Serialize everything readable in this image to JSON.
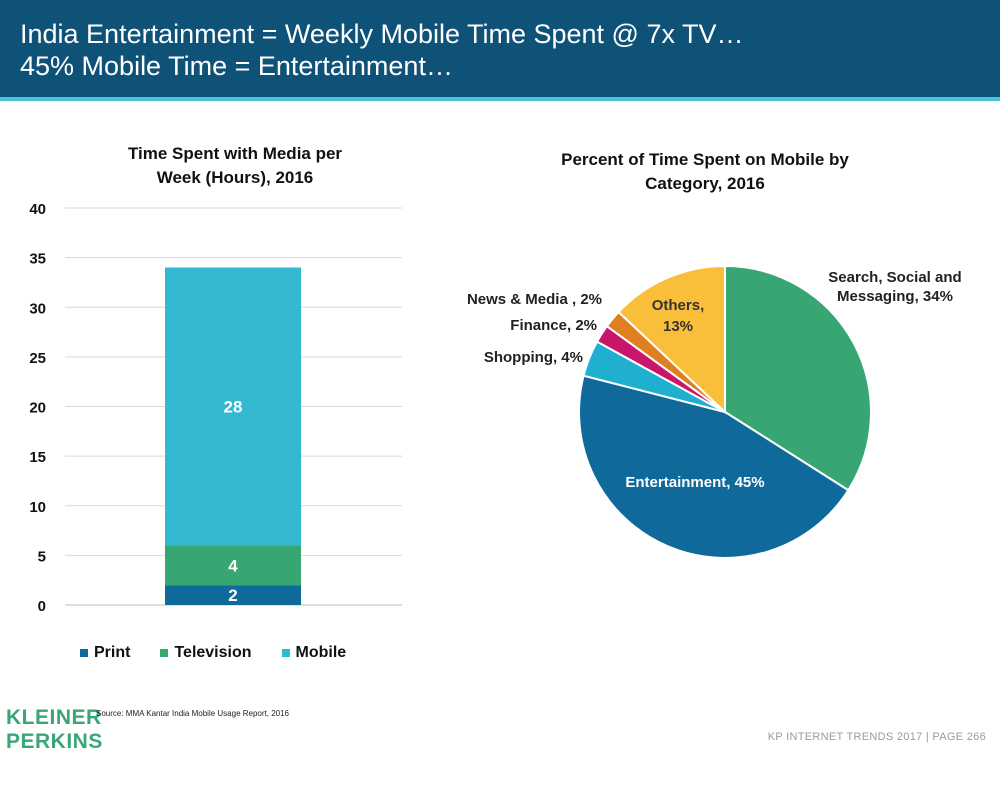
{
  "header": {
    "line1": "India Entertainment = Weekly Mobile Time Spent @ 7x TV…",
    "line2": "45% Mobile Time = Entertainment…"
  },
  "colors": {
    "header_bg": "#0f5277",
    "accent_rule": "#4cc2d6",
    "print": "#0f6a9b",
    "television": "#37a673",
    "mobile": "#33b8d2",
    "shopping": "#1fb0cf",
    "finance": "#c8166a",
    "news": "#e07f22",
    "others": "#f9bf3a"
  },
  "chart_data": [
    {
      "type": "bar",
      "stacked": true,
      "title": "Time Spent with Media per Week (Hours), 2016",
      "title_lines": [
        "Time Spent with Media per",
        "Week (Hours), 2016"
      ],
      "categories": [
        ""
      ],
      "ylim": [
        0,
        40
      ],
      "yticks": [
        0,
        5,
        10,
        15,
        20,
        25,
        30,
        35,
        40
      ],
      "grid": true,
      "legend_position": "bottom",
      "series": [
        {
          "name": "Print",
          "values": [
            2
          ],
          "label": "2"
        },
        {
          "name": "Television",
          "values": [
            4
          ],
          "label": "4"
        },
        {
          "name": "Mobile",
          "values": [
            28
          ],
          "label": "28"
        }
      ]
    },
    {
      "type": "pie",
      "title": "Percent of Time Spent on Mobile by Category, 2016",
      "title_lines": [
        "Percent of Time Spent on Mobile by",
        "Category, 2016"
      ],
      "slices": [
        {
          "name": "Search, Social and Messaging",
          "value": 34,
          "label_lines": [
            "Search, Social and",
            "Messaging, 34%"
          ]
        },
        {
          "name": "Entertainment",
          "value": 45,
          "label_lines": [
            "Entertainment, 45%"
          ]
        },
        {
          "name": "Shopping",
          "value": 4,
          "label_lines": [
            "Shopping, 4%"
          ]
        },
        {
          "name": "Finance",
          "value": 2,
          "label_lines": [
            "Finance, 2%"
          ]
        },
        {
          "name": "News & Media",
          "value": 2,
          "label_lines": [
            "News & Media , 2%"
          ]
        },
        {
          "name": "Others",
          "value": 13,
          "label_lines": [
            "Others,",
            "13%"
          ]
        }
      ]
    }
  ],
  "logo": {
    "line1": "KLEINER",
    "line2": "PERKINS"
  },
  "source": "Source: MMA Kantar India Mobile Usage Report, 2016",
  "footer": "KP INTERNET TRENDS 2017   |   PAGE 266"
}
